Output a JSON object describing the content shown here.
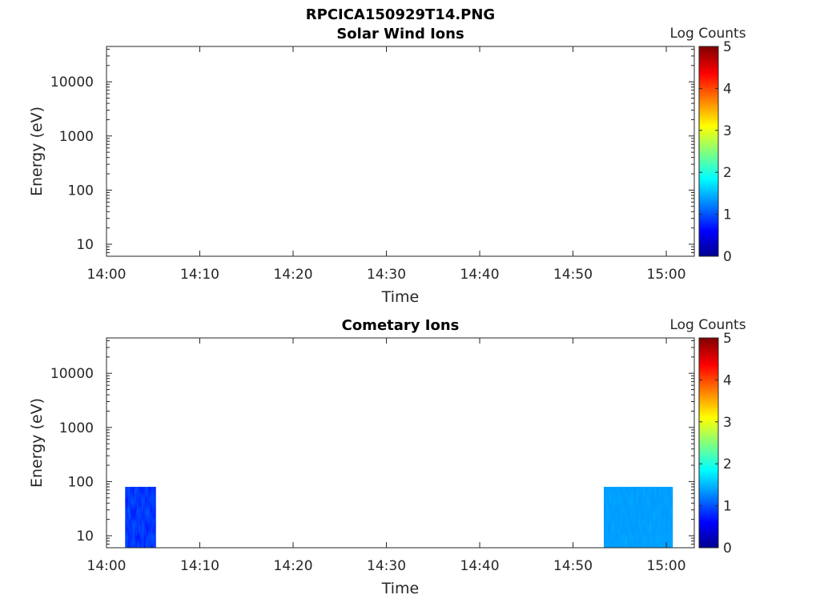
{
  "figure": {
    "title": "RPCICA150929T14.PNG"
  },
  "colormap": {
    "name": "jet",
    "stops": [
      "#00008f",
      "#0000ff",
      "#00ffff",
      "#ffff00",
      "#ff0000",
      "#800000"
    ]
  },
  "chart_data": [
    {
      "type": "heatmap",
      "title": "Solar Wind Ions",
      "xlabel": "Time",
      "ylabel": "Energy (eV)",
      "x_ticks": [
        "14:00",
        "14:10",
        "14:20",
        "14:30",
        "14:40",
        "14:50",
        "15:00"
      ],
      "xlim": [
        "14:00",
        "15:03"
      ],
      "y_scale": "log",
      "y_ticks": [
        10,
        100,
        1000,
        10000
      ],
      "y_tick_labels": [
        "10",
        "100",
        "1000",
        "10000"
      ],
      "ylim": [
        6,
        45000
      ],
      "colorbar": {
        "label": "Log Counts",
        "range": [
          0,
          5
        ],
        "ticks": [
          "0",
          "1",
          "2",
          "3",
          "4",
          "5"
        ]
      },
      "blocks": []
    },
    {
      "type": "heatmap",
      "title": "Cometary Ions",
      "xlabel": "Time",
      "ylabel": "Energy (eV)",
      "x_ticks": [
        "14:00",
        "14:10",
        "14:20",
        "14:30",
        "14:40",
        "14:50",
        "15:00"
      ],
      "xlim": [
        "14:00",
        "15:03"
      ],
      "y_scale": "log",
      "y_ticks": [
        10,
        100,
        1000,
        10000
      ],
      "y_tick_labels": [
        "10",
        "100",
        "1000",
        "10000"
      ],
      "ylim": [
        6,
        45000
      ],
      "colorbar": {
        "label": "Log Counts",
        "range": [
          0,
          5
        ],
        "ticks": [
          "0",
          "1",
          "2",
          "3",
          "4",
          "5"
        ]
      },
      "blocks": [
        {
          "t_start": "14:02",
          "t_end": "14:05.3",
          "e_min": 6,
          "e_max": 80,
          "log_counts": 0.6
        },
        {
          "t_start": "14:53.3",
          "t_end": "15:00.7",
          "e_min": 6,
          "e_max": 80,
          "log_counts": 1.3
        }
      ]
    }
  ]
}
